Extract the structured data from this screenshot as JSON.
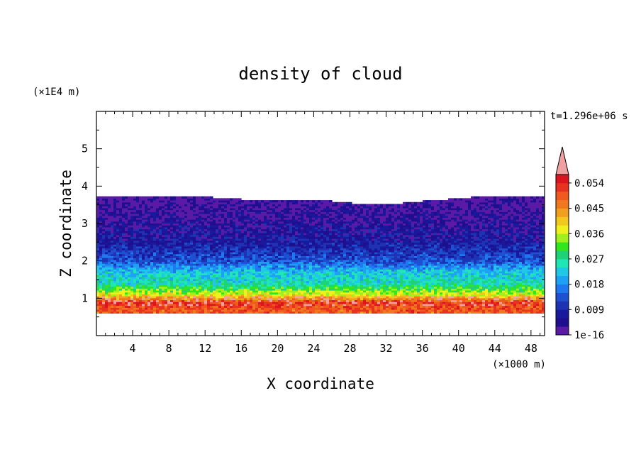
{
  "chart_data": {
    "type": "heatmap",
    "title": "density of cloud",
    "xlabel": "X coordinate",
    "ylabel": "Z coordinate",
    "x_unit": "(×1000 m)",
    "y_unit": "(×1E4 m)",
    "time_label": "t=1.296e+06 s",
    "xlim": [
      0,
      49.5
    ],
    "ylim": [
      0,
      6
    ],
    "x_ticks": [
      4,
      8,
      12,
      16,
      20,
      24,
      28,
      32,
      36,
      40,
      44,
      48
    ],
    "y_ticks": [
      1,
      2,
      3,
      4,
      5
    ],
    "grid": false,
    "colorbar": {
      "tick_labels": [
        "1e-16",
        "0.009",
        "0.018",
        "0.027",
        "0.036",
        "0.045",
        "0.054"
      ],
      "colors": [
        "#5a1aa6",
        "#1f0f8f",
        "#19199e",
        "#1e32b4",
        "#1e50d2",
        "#1e78f0",
        "#1ea0f5",
        "#1ec8e6",
        "#1ee6b4",
        "#1ed278",
        "#32e61e",
        "#a0f01e",
        "#f0f01e",
        "#f0c81e",
        "#f0a01e",
        "#f0781e",
        "#f05a1e",
        "#e6321e",
        "#dc141e"
      ],
      "extend_color": "#f0a0a0"
    },
    "profile": [
      {
        "z": 0.7,
        "level": 16
      },
      {
        "z": 0.9,
        "level": 17
      },
      {
        "z": 1.1,
        "level": 12
      },
      {
        "z": 1.4,
        "level": 8
      },
      {
        "z": 1.7,
        "level": 7
      },
      {
        "z": 2.0,
        "level": 4
      },
      {
        "z": 2.5,
        "level": 2
      },
      {
        "z": 3.0,
        "level": 1
      },
      {
        "z": 3.7,
        "level": 0
      }
    ],
    "top_boundary": [
      {
        "x": 0,
        "z": 3.75
      },
      {
        "x": 10,
        "z": 3.75
      },
      {
        "x": 16,
        "z": 3.65
      },
      {
        "x": 24,
        "z": 3.65
      },
      {
        "x": 28,
        "z": 3.55
      },
      {
        "x": 32,
        "z": 3.5
      },
      {
        "x": 36,
        "z": 3.6
      },
      {
        "x": 44,
        "z": 3.75
      },
      {
        "x": 49.5,
        "z": 3.75
      }
    ],
    "bottom_boundary_z": 0.6
  }
}
